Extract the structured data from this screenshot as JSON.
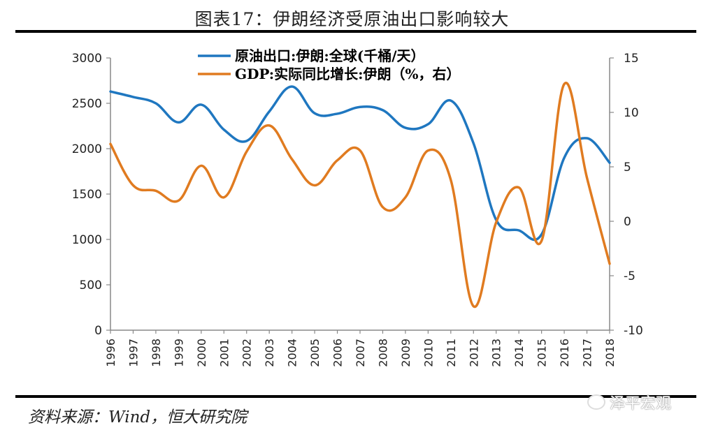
{
  "header": {
    "title": "图表17：伊朗经济受原油出口影响较大"
  },
  "footer": {
    "source": "资料来源：Wind，恒大研究院",
    "watermark": "泽平宏观",
    "watermark_icon": "wechat-icon"
  },
  "colors": {
    "oil": "#1f77c0",
    "gdp": "#e07b20",
    "axis": "#888888"
  },
  "chart_data": {
    "type": "line",
    "title": "图表17：伊朗经济受原油出口影响较大",
    "xlabel": "",
    "categories": [
      "1996",
      "1997",
      "1998",
      "1999",
      "2000",
      "2001",
      "2002",
      "2003",
      "2004",
      "2005",
      "2006",
      "2007",
      "2008",
      "2009",
      "2010",
      "2011",
      "2012",
      "2013",
      "2014",
      "2015",
      "2016",
      "2017",
      "2018"
    ],
    "y_left": {
      "range": [
        0,
        3000
      ],
      "ticks": [
        "0",
        "500",
        "1000",
        "1500",
        "2000",
        "2500",
        "3000"
      ]
    },
    "y_right": {
      "range": [
        -10,
        15
      ],
      "ticks": [
        "-10",
        "-5",
        "0",
        "5",
        "10",
        "15"
      ]
    },
    "legend_position": "top-center",
    "grid": false,
    "smooth": true,
    "series": [
      {
        "name": "原油出口:伊朗:全球(千桶/天）",
        "axis": "left",
        "color": "#1f77c0",
        "values": [
          2630,
          2570,
          2500,
          2290,
          2485,
          2210,
          2085,
          2410,
          2685,
          2390,
          2385,
          2460,
          2425,
          2230,
          2270,
          2530,
          2060,
          1215,
          1100,
          1055,
          1900,
          2115,
          1845
        ]
      },
      {
        "name": "GDP:实际同比增长:伊朗（%，右）",
        "axis": "right",
        "color": "#e07b20",
        "values": [
          7.1,
          3.3,
          2.8,
          1.9,
          5.1,
          2.2,
          6.4,
          8.8,
          5.7,
          3.3,
          5.6,
          6.5,
          1.3,
          2.2,
          6.5,
          3.8,
          -7.8,
          -0.1,
          3.1,
          -1.8,
          12.6,
          4.0,
          -3.9
        ]
      }
    ]
  }
}
